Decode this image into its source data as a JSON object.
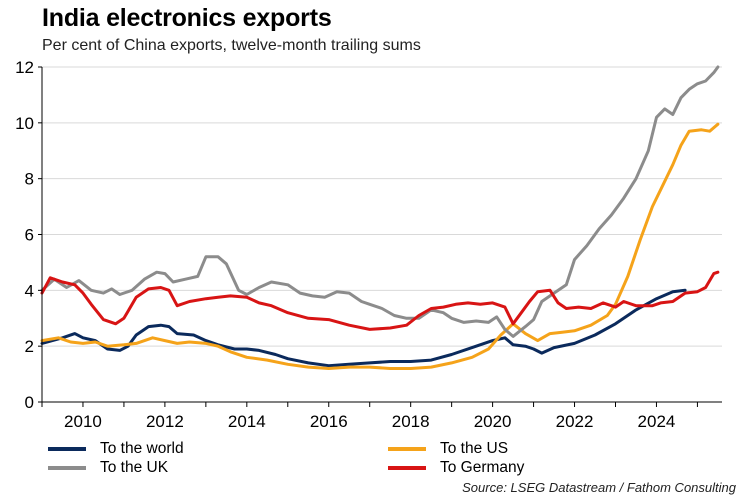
{
  "header": {
    "title": "India electronics exports",
    "subtitle": "Per cent of China exports, twelve-month trailing sums"
  },
  "source": "Source: LSEG Datastream / Fathom Consulting",
  "legend": [
    {
      "label": "To the world",
      "color": "#0b2a5c"
    },
    {
      "label": "To the US",
      "color": "#f5a31a"
    },
    {
      "label": "To the UK",
      "color": "#8c8c8c"
    },
    {
      "label": "To Germany",
      "color": "#d81414"
    }
  ],
  "chart_data": {
    "type": "line",
    "xlim": [
      2009,
      2025.6
    ],
    "ylim": [
      0,
      12
    ],
    "xticks": [
      2010,
      2012,
      2014,
      2016,
      2018,
      2020,
      2022,
      2024
    ],
    "yticks": [
      0,
      2,
      4,
      6,
      8,
      10,
      12
    ],
    "grid": true,
    "legend_position": "bottom",
    "series": [
      {
        "name": "To the world",
        "color": "#0b2a5c",
        "points": [
          [
            2009,
            2.1
          ],
          [
            2009.5,
            2.3
          ],
          [
            2009.8,
            2.45
          ],
          [
            2010,
            2.3
          ],
          [
            2010.3,
            2.2
          ],
          [
            2010.6,
            1.9
          ],
          [
            2010.9,
            1.85
          ],
          [
            2011.1,
            2.0
          ],
          [
            2011.3,
            2.4
          ],
          [
            2011.6,
            2.7
          ],
          [
            2011.9,
            2.75
          ],
          [
            2012.1,
            2.7
          ],
          [
            2012.3,
            2.45
          ],
          [
            2012.7,
            2.4
          ],
          [
            2013,
            2.2
          ],
          [
            2013.3,
            2.05
          ],
          [
            2013.7,
            1.9
          ],
          [
            2014,
            1.9
          ],
          [
            2014.3,
            1.85
          ],
          [
            2014.7,
            1.7
          ],
          [
            2015,
            1.55
          ],
          [
            2015.5,
            1.4
          ],
          [
            2016,
            1.3
          ],
          [
            2016.5,
            1.35
          ],
          [
            2017,
            1.4
          ],
          [
            2017.5,
            1.45
          ],
          [
            2018,
            1.45
          ],
          [
            2018.5,
            1.5
          ],
          [
            2019,
            1.7
          ],
          [
            2019.5,
            1.95
          ],
          [
            2020,
            2.2
          ],
          [
            2020.3,
            2.3
          ],
          [
            2020.5,
            2.05
          ],
          [
            2020.8,
            2.0
          ],
          [
            2021,
            1.9
          ],
          [
            2021.2,
            1.75
          ],
          [
            2021.5,
            1.95
          ],
          [
            2022,
            2.1
          ],
          [
            2022.5,
            2.4
          ],
          [
            2023,
            2.8
          ],
          [
            2023.5,
            3.3
          ],
          [
            2024,
            3.7
          ],
          [
            2024.4,
            3.95
          ],
          [
            2024.7,
            4.0
          ]
        ]
      },
      {
        "name": "To the US",
        "color": "#f5a31a",
        "points": [
          [
            2009,
            2.2
          ],
          [
            2009.4,
            2.3
          ],
          [
            2009.7,
            2.15
          ],
          [
            2010,
            2.1
          ],
          [
            2010.3,
            2.15
          ],
          [
            2010.6,
            2.0
          ],
          [
            2011,
            2.05
          ],
          [
            2011.3,
            2.1
          ],
          [
            2011.7,
            2.3
          ],
          [
            2012,
            2.2
          ],
          [
            2012.3,
            2.1
          ],
          [
            2012.6,
            2.15
          ],
          [
            2013,
            2.1
          ],
          [
            2013.3,
            2.0
          ],
          [
            2013.6,
            1.8
          ],
          [
            2014,
            1.6
          ],
          [
            2014.5,
            1.5
          ],
          [
            2015,
            1.35
          ],
          [
            2015.5,
            1.25
          ],
          [
            2016,
            1.2
          ],
          [
            2016.5,
            1.25
          ],
          [
            2017,
            1.25
          ],
          [
            2017.5,
            1.2
          ],
          [
            2018,
            1.2
          ],
          [
            2018.5,
            1.25
          ],
          [
            2019,
            1.4
          ],
          [
            2019.5,
            1.6
          ],
          [
            2019.9,
            1.9
          ],
          [
            2020.2,
            2.4
          ],
          [
            2020.5,
            2.8
          ],
          [
            2020.8,
            2.45
          ],
          [
            2021.1,
            2.2
          ],
          [
            2021.4,
            2.45
          ],
          [
            2021.7,
            2.5
          ],
          [
            2022,
            2.55
          ],
          [
            2022.4,
            2.75
          ],
          [
            2022.8,
            3.1
          ],
          [
            2023,
            3.5
          ],
          [
            2023.3,
            4.5
          ],
          [
            2023.6,
            5.8
          ],
          [
            2023.9,
            7.0
          ],
          [
            2024.1,
            7.6
          ],
          [
            2024.4,
            8.5
          ],
          [
            2024.6,
            9.2
          ],
          [
            2024.8,
            9.7
          ],
          [
            2025.1,
            9.75
          ],
          [
            2025.3,
            9.7
          ],
          [
            2025.5,
            9.95
          ]
        ]
      },
      {
        "name": "To the UK",
        "color": "#8c8c8c",
        "points": [
          [
            2009,
            4.0
          ],
          [
            2009.3,
            4.4
          ],
          [
            2009.6,
            4.1
          ],
          [
            2009.9,
            4.35
          ],
          [
            2010.2,
            4.0
          ],
          [
            2010.5,
            3.9
          ],
          [
            2010.7,
            4.05
          ],
          [
            2010.9,
            3.85
          ],
          [
            2011.2,
            4.0
          ],
          [
            2011.5,
            4.4
          ],
          [
            2011.8,
            4.65
          ],
          [
            2012,
            4.6
          ],
          [
            2012.2,
            4.3
          ],
          [
            2012.5,
            4.4
          ],
          [
            2012.8,
            4.5
          ],
          [
            2013,
            5.2
          ],
          [
            2013.3,
            5.2
          ],
          [
            2013.5,
            4.95
          ],
          [
            2013.8,
            4.0
          ],
          [
            2014,
            3.85
          ],
          [
            2014.3,
            4.1
          ],
          [
            2014.6,
            4.3
          ],
          [
            2015,
            4.2
          ],
          [
            2015.3,
            3.9
          ],
          [
            2015.6,
            3.8
          ],
          [
            2015.9,
            3.75
          ],
          [
            2016.2,
            3.95
          ],
          [
            2016.5,
            3.9
          ],
          [
            2016.8,
            3.6
          ],
          [
            2017,
            3.5
          ],
          [
            2017.3,
            3.35
          ],
          [
            2017.6,
            3.1
          ],
          [
            2017.9,
            3.0
          ],
          [
            2018.2,
            3.0
          ],
          [
            2018.5,
            3.3
          ],
          [
            2018.8,
            3.2
          ],
          [
            2019,
            3.0
          ],
          [
            2019.3,
            2.85
          ],
          [
            2019.6,
            2.9
          ],
          [
            2019.9,
            2.85
          ],
          [
            2020.1,
            3.05
          ],
          [
            2020.3,
            2.6
          ],
          [
            2020.5,
            2.35
          ],
          [
            2020.8,
            2.7
          ],
          [
            2021,
            2.95
          ],
          [
            2021.2,
            3.6
          ],
          [
            2021.5,
            3.9
          ],
          [
            2021.8,
            4.2
          ],
          [
            2022,
            5.1
          ],
          [
            2022.3,
            5.6
          ],
          [
            2022.6,
            6.2
          ],
          [
            2022.9,
            6.7
          ],
          [
            2023.2,
            7.3
          ],
          [
            2023.5,
            8.0
          ],
          [
            2023.8,
            9.0
          ],
          [
            2024,
            10.2
          ],
          [
            2024.2,
            10.5
          ],
          [
            2024.4,
            10.3
          ],
          [
            2024.6,
            10.9
          ],
          [
            2024.8,
            11.2
          ],
          [
            2025,
            11.4
          ],
          [
            2025.2,
            11.5
          ],
          [
            2025.4,
            11.8
          ],
          [
            2025.5,
            12.0
          ]
        ]
      },
      {
        "name": "To Germany",
        "color": "#d81414",
        "points": [
          [
            2009,
            3.9
          ],
          [
            2009.2,
            4.45
          ],
          [
            2009.5,
            4.3
          ],
          [
            2009.8,
            4.2
          ],
          [
            2010,
            3.9
          ],
          [
            2010.2,
            3.5
          ],
          [
            2010.5,
            2.95
          ],
          [
            2010.8,
            2.8
          ],
          [
            2011,
            3.0
          ],
          [
            2011.3,
            3.75
          ],
          [
            2011.6,
            4.05
          ],
          [
            2011.9,
            4.1
          ],
          [
            2012.1,
            4.0
          ],
          [
            2012.3,
            3.45
          ],
          [
            2012.6,
            3.6
          ],
          [
            2013,
            3.7
          ],
          [
            2013.3,
            3.75
          ],
          [
            2013.6,
            3.8
          ],
          [
            2014,
            3.75
          ],
          [
            2014.3,
            3.55
          ],
          [
            2014.6,
            3.45
          ],
          [
            2015,
            3.2
          ],
          [
            2015.5,
            3.0
          ],
          [
            2016,
            2.95
          ],
          [
            2016.5,
            2.75
          ],
          [
            2017,
            2.6
          ],
          [
            2017.5,
            2.65
          ],
          [
            2017.9,
            2.75
          ],
          [
            2018.2,
            3.1
          ],
          [
            2018.5,
            3.35
          ],
          [
            2018.8,
            3.4
          ],
          [
            2019.1,
            3.5
          ],
          [
            2019.4,
            3.55
          ],
          [
            2019.7,
            3.5
          ],
          [
            2020,
            3.55
          ],
          [
            2020.3,
            3.4
          ],
          [
            2020.5,
            2.8
          ],
          [
            2020.7,
            3.2
          ],
          [
            2020.9,
            3.6
          ],
          [
            2021.1,
            3.95
          ],
          [
            2021.4,
            4.0
          ],
          [
            2021.6,
            3.55
          ],
          [
            2021.8,
            3.35
          ],
          [
            2022.1,
            3.4
          ],
          [
            2022.4,
            3.35
          ],
          [
            2022.7,
            3.55
          ],
          [
            2023,
            3.4
          ],
          [
            2023.2,
            3.6
          ],
          [
            2023.5,
            3.45
          ],
          [
            2023.9,
            3.45
          ],
          [
            2024.1,
            3.55
          ],
          [
            2024.4,
            3.6
          ],
          [
            2024.7,
            3.9
          ],
          [
            2025,
            3.95
          ],
          [
            2025.2,
            4.1
          ],
          [
            2025.4,
            4.6
          ],
          [
            2025.5,
            4.65
          ]
        ]
      }
    ]
  }
}
